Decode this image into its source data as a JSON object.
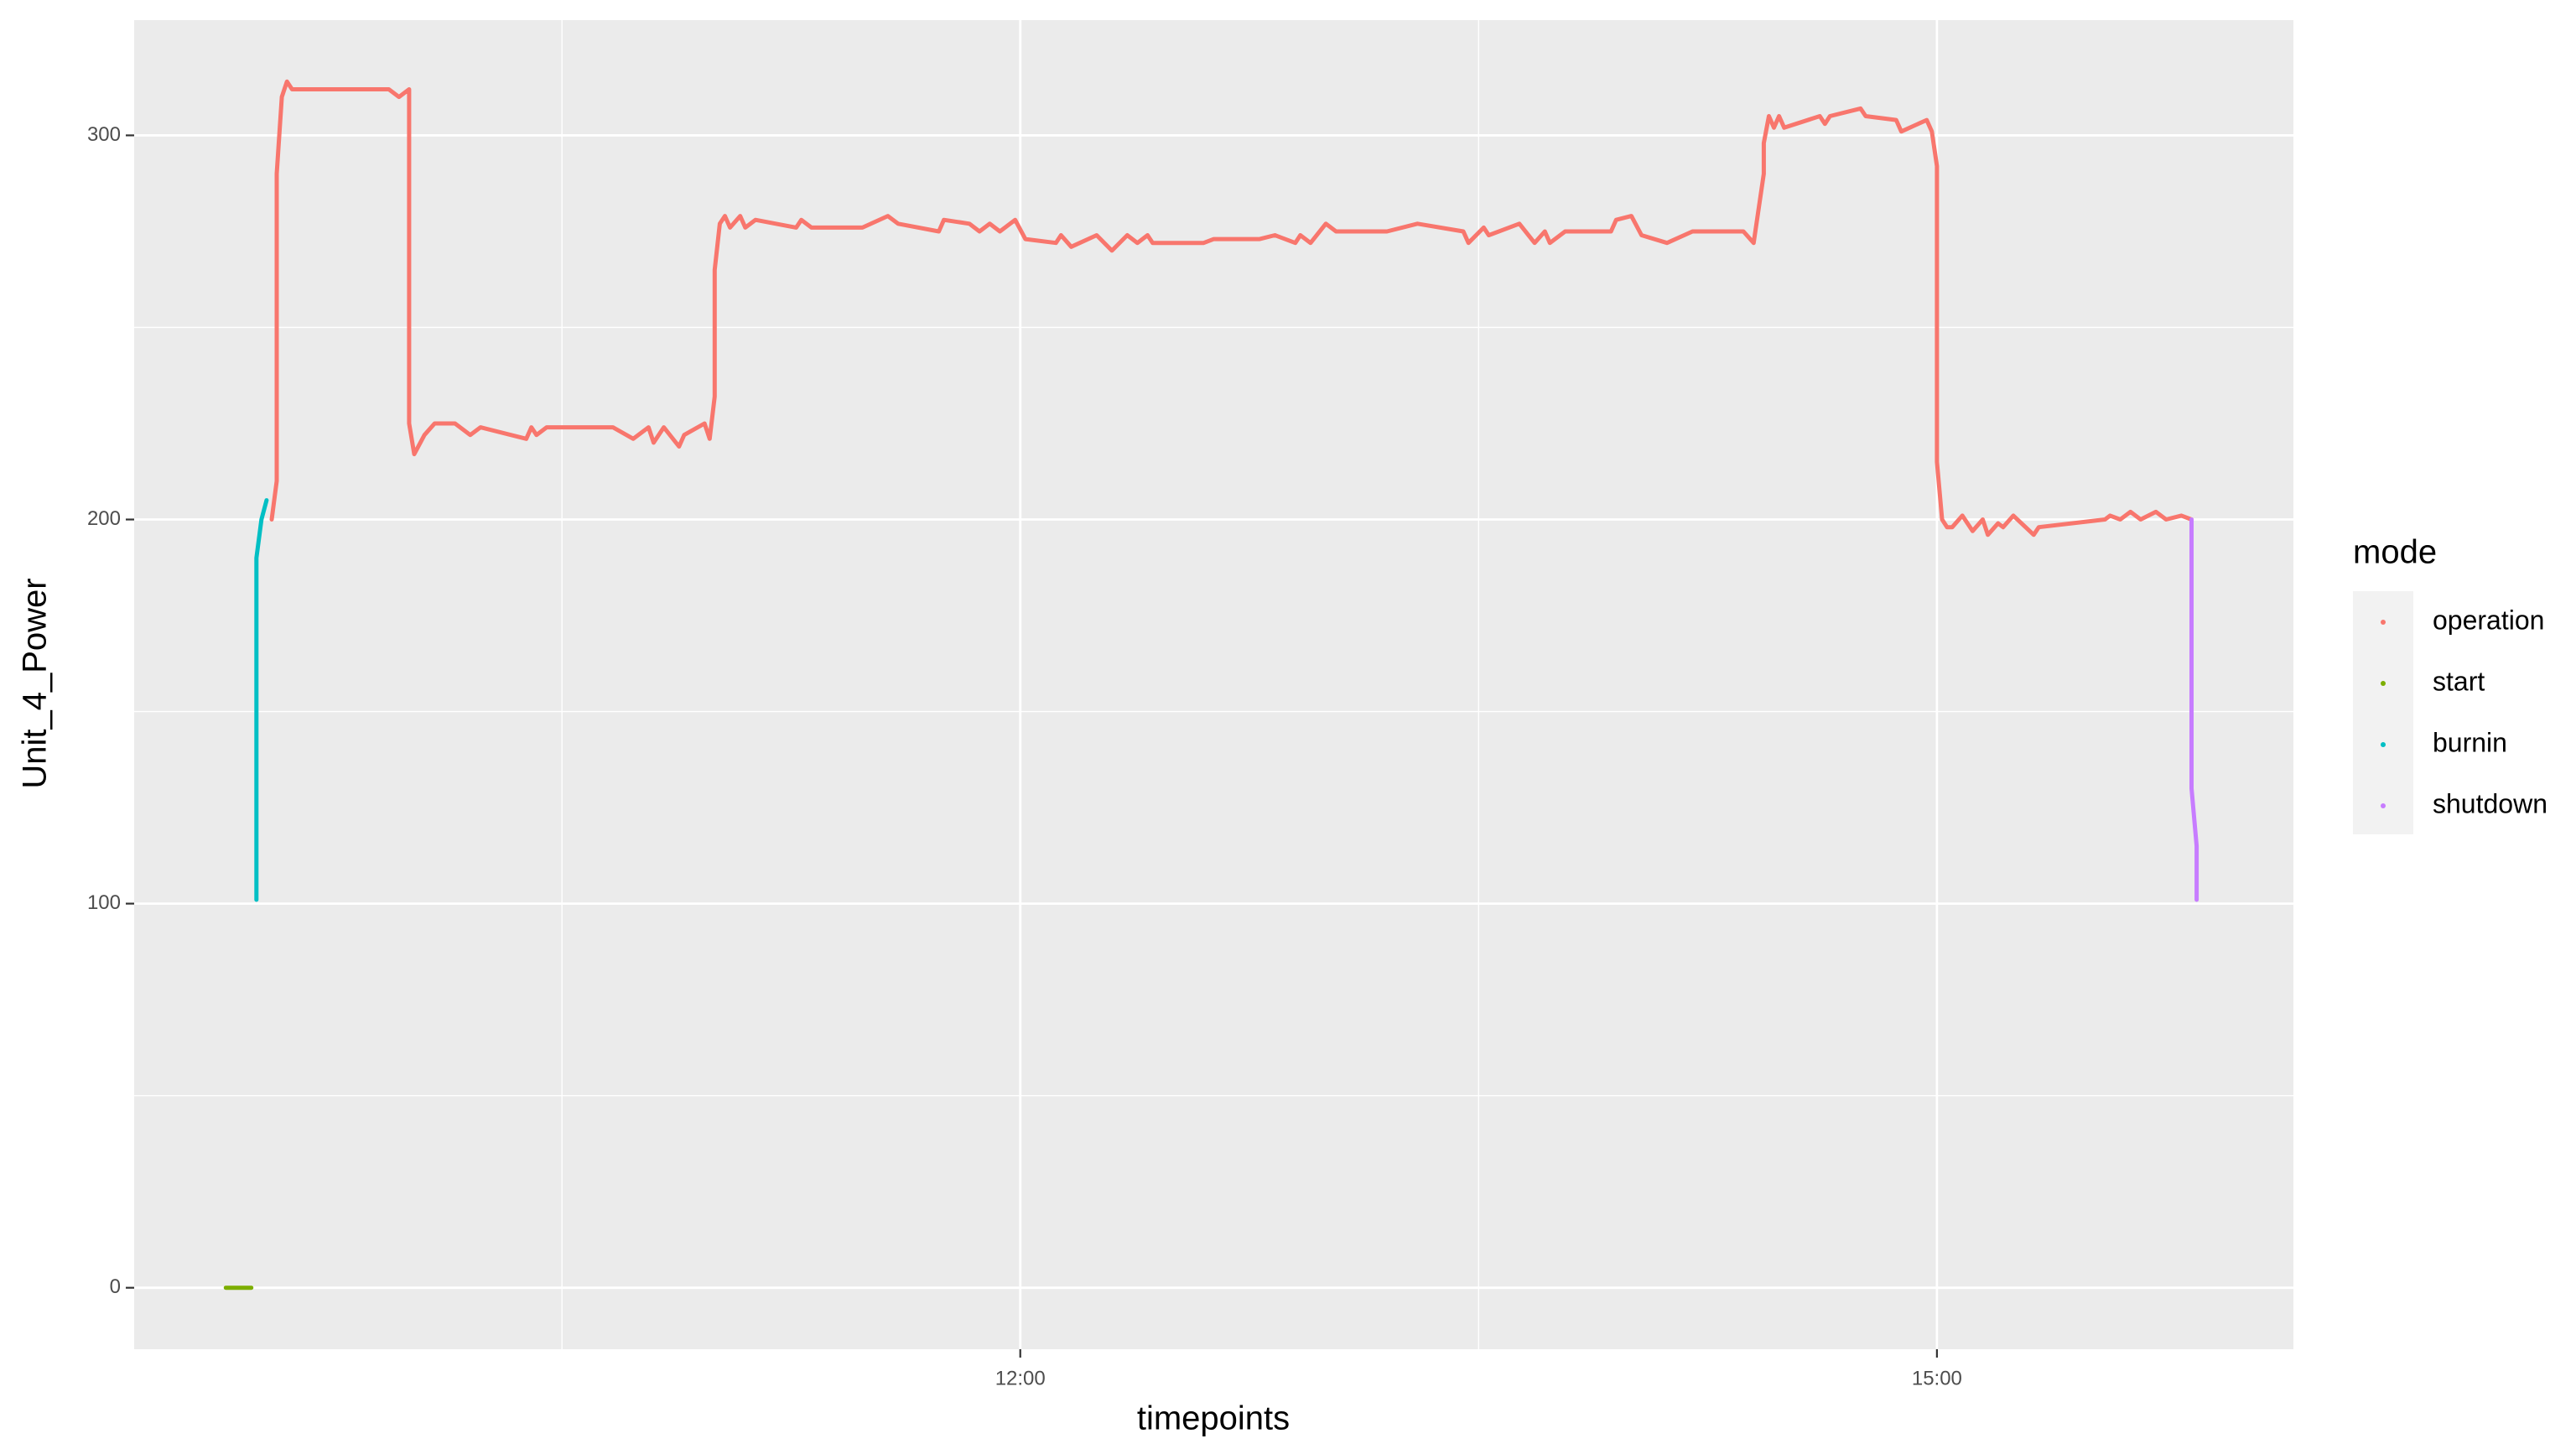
{
  "chart_data": {
    "type": "line",
    "x_label": "timepoints",
    "y_label": "Unit_4_Power",
    "xlim": [
      "09:06",
      "16:10"
    ],
    "xticks": [
      "12:00",
      "15:00"
    ],
    "xminorticks": [
      "10:30",
      "13:30"
    ],
    "ylim": [
      -16,
      330
    ],
    "yticks": [
      0,
      100,
      200,
      300
    ],
    "yminorticks": [
      50,
      150,
      250
    ],
    "grid": true,
    "legend_title": "mode",
    "legend_position": "right",
    "series": [
      {
        "name": "operation",
        "color": "#F8766D",
        "x": [
          "09:33",
          "09:34",
          "09:34",
          "09:34",
          "09:35",
          "09:36",
          "09:37",
          "09:56",
          "09:58",
          "10:00",
          "10:00",
          "10:00",
          "10:00",
          "10:01",
          "10:03",
          "10:05",
          "10:09",
          "10:12",
          "10:14",
          "10:23",
          "10:24",
          "10:25",
          "10:27",
          "10:29",
          "10:40",
          "10:44",
          "10:47",
          "10:48",
          "10:50",
          "10:53",
          "10:54",
          "10:58",
          "10:59",
          "11:00",
          "11:00",
          "11:00",
          "11:01",
          "11:02",
          "11:03",
          "11:05",
          "11:06",
          "11:08",
          "11:16",
          "11:17",
          "11:19",
          "11:29",
          "11:34",
          "11:36",
          "11:44",
          "11:45",
          "11:50",
          "11:52",
          "11:54",
          "11:56",
          "11:59",
          "12:01",
          "12:07",
          "12:08",
          "12:10",
          "12:15",
          "12:18",
          "12:21",
          "12:23",
          "12:25",
          "12:26",
          "12:36",
          "12:38",
          "12:47",
          "12:50",
          "12:54",
          "12:55",
          "12:57",
          "13:00",
          "13:02",
          "13:12",
          "13:18",
          "13:27",
          "13:28",
          "13:31",
          "13:32",
          "13:38",
          "13:41",
          "13:43",
          "13:44",
          "13:47",
          "13:56",
          "13:57",
          "14:00",
          "14:02",
          "14:07",
          "14:12",
          "14:22",
          "14:24",
          "14:26",
          "14:26",
          "14:27",
          "14:28",
          "14:29",
          "14:30",
          "14:37",
          "14:38",
          "14:39",
          "14:45",
          "14:46",
          "14:52",
          "14:53",
          "14:58",
          "14:59",
          "15:00",
          "15:00",
          "15:00",
          "15:00",
          "15:01",
          "15:02",
          "15:03",
          "15:05",
          "15:07",
          "15:09",
          "15:10",
          "15:12",
          "15:13",
          "15:15",
          "15:19",
          "15:20",
          "15:33",
          "15:34",
          "15:36",
          "15:38",
          "15:40",
          "15:43",
          "15:45",
          "15:48",
          "15:50"
        ],
        "values": [
          200,
          210,
          250,
          290,
          310,
          314,
          312,
          312,
          310,
          312,
          300,
          260,
          225,
          217,
          222,
          225,
          225,
          222,
          224,
          221,
          224,
          222,
          224,
          224,
          224,
          221,
          224,
          220,
          224,
          219,
          222,
          225,
          221,
          232,
          250,
          265,
          277,
          279,
          276,
          279,
          276,
          278,
          276,
          278,
          276,
          276,
          279,
          277,
          275,
          278,
          277,
          275,
          277,
          275,
          278,
          273,
          272,
          274,
          271,
          274,
          270,
          274,
          272,
          274,
          272,
          272,
          273,
          273,
          274,
          272,
          274,
          272,
          277,
          275,
          275,
          277,
          275,
          272,
          276,
          274,
          277,
          272,
          275,
          272,
          275,
          275,
          278,
          279,
          274,
          272,
          275,
          275,
          272,
          290,
          298,
          305,
          302,
          305,
          302,
          305,
          303,
          305,
          307,
          305,
          304,
          301,
          304,
          301,
          292,
          270,
          240,
          215,
          200,
          198,
          198,
          201,
          197,
          200,
          196,
          199,
          198,
          201,
          196,
          198,
          200,
          201,
          200,
          202,
          200,
          202,
          200,
          201,
          200
        ]
      },
      {
        "name": "start",
        "color": "#7CAE00",
        "x": [
          "09:24",
          "09:26",
          "09:29"
        ],
        "values": [
          0,
          0,
          0
        ]
      },
      {
        "name": "burnin",
        "color": "#00BFC4",
        "x": [
          "09:30",
          "09:30",
          "09:30",
          "09:30",
          "09:31",
          "09:32"
        ],
        "values": [
          101,
          130,
          160,
          190,
          200,
          205
        ]
      },
      {
        "name": "shutdown",
        "color": "#C77CFF",
        "x": [
          "15:50",
          "15:50",
          "15:50",
          "15:50",
          "15:50",
          "15:51",
          "15:51"
        ],
        "values": [
          200,
          190,
          170,
          150,
          130,
          115,
          101
        ]
      }
    ]
  }
}
